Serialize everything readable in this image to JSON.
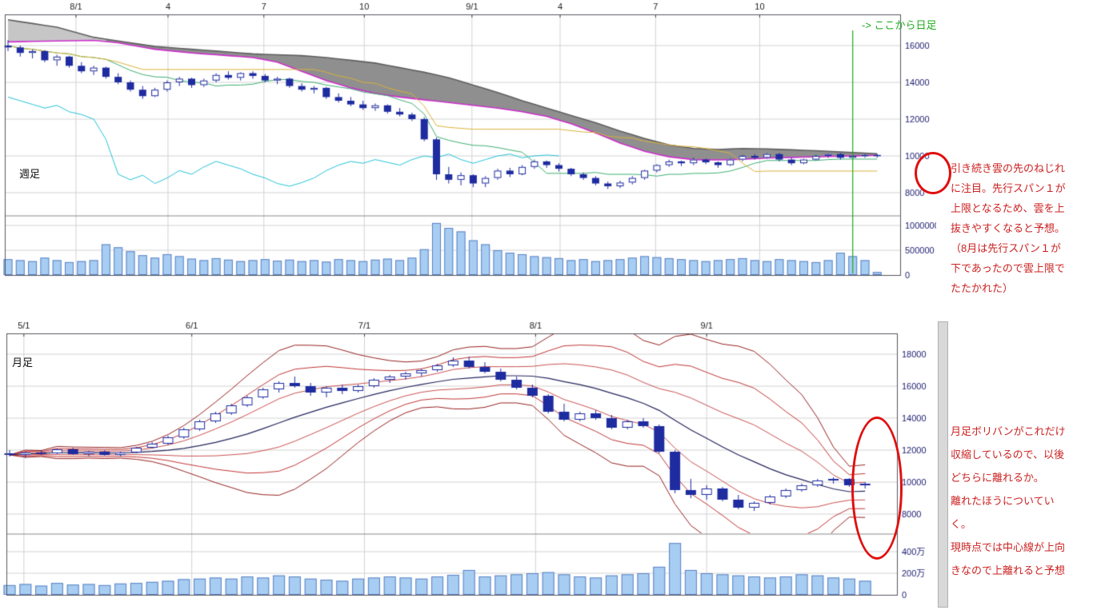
{
  "page": {
    "bg": "#ffffff"
  },
  "annotations": {
    "weekly_note": "引き続き雲の先のねじれ\nに注目。先行スパン１が\n上限となるため、雲を上\n抜きやすくなると予想。\n（8月は先行スパン１が\n下であったので雲上限で\nたたかれた）",
    "monthly_note": "月足ボリバンがこれだけ\n収縮しているので、以後\nどちらに離れるか。\n離れたほうについてい\nく。\n現時点では中心線が上向\nきなので上離れると予想"
  },
  "colors": {
    "up_candle": "#ffffff",
    "down_candle": "#1e2ca0",
    "candle_border": "#1e2ca0",
    "volume_fill": "#a8cdf2",
    "volume_border": "#5b82c4",
    "cloud_light": "#c6c6c6",
    "cloud_dark": "#8f8f8f",
    "cloud_edge_top": "#5f5f5f",
    "cloud_edge_bottom": "#cc2fcc",
    "tenkan": "#3fae72",
    "kijun": "#d9b23a",
    "chikou": "#25c3d8",
    "boll_center": "#26265e",
    "boll_band1": "#c85050",
    "boll_band2": "#c03434",
    "boll_band3": "#962020",
    "grid": "#d2d2d2",
    "frame": "#55555f",
    "axis_text": "#1a1a6e",
    "x_text": "#222222",
    "note_red": "#cc2222",
    "marker_green": "#1faa1f",
    "annotation_red": "#e01010"
  },
  "chart_data": [
    {
      "id": "weekly",
      "type": "candlestick",
      "title": "週足",
      "x_ticks": [
        {
          "pos": 5.55,
          "label": "8/1"
        },
        {
          "pos": 13.07,
          "label": "4"
        },
        {
          "pos": 20.9,
          "label": "7"
        },
        {
          "pos": 29.1,
          "label": "10"
        },
        {
          "pos": 37.9,
          "label": "9/1"
        },
        {
          "pos": 45.1,
          "label": "4"
        },
        {
          "pos": 52.9,
          "label": "7"
        },
        {
          "pos": 61.4,
          "label": "10"
        }
      ],
      "price_ticks": [
        16000,
        14000,
        12000,
        10000,
        8000
      ],
      "volume_ticks": [
        {
          "v": 1000000,
          "label": "1000000"
        },
        {
          "v": 500000,
          "label": "500000"
        },
        {
          "v": 0,
          "label": "0"
        }
      ],
      "candles": [
        [
          16000,
          16300,
          15700,
          15900
        ],
        [
          15900,
          16000,
          15400,
          15600
        ],
        [
          15600,
          15800,
          15300,
          15700
        ],
        [
          15700,
          15750,
          15100,
          15200
        ],
        [
          15200,
          15500,
          14900,
          15400
        ],
        [
          15400,
          15450,
          14800,
          14900
        ],
        [
          14900,
          15100,
          14500,
          14600
        ],
        [
          14600,
          14900,
          14400,
          14800
        ],
        [
          14800,
          14850,
          14200,
          14300
        ],
        [
          14300,
          14500,
          13900,
          14000
        ],
        [
          14000,
          14100,
          13500,
          13600
        ],
        [
          13600,
          13800,
          13100,
          13250
        ],
        [
          13250,
          13700,
          13200,
          13600
        ],
        [
          13600,
          14100,
          13500,
          14000
        ],
        [
          14000,
          14300,
          13800,
          14200
        ],
        [
          14200,
          14250,
          13700,
          13850
        ],
        [
          13850,
          14200,
          13750,
          14100
        ],
        [
          14100,
          14500,
          14000,
          14400
        ],
        [
          14400,
          14600,
          14150,
          14250
        ],
        [
          14250,
          14550,
          14100,
          14500
        ],
        [
          14500,
          14600,
          14200,
          14350
        ],
        [
          14350,
          14450,
          14000,
          14100
        ],
        [
          14100,
          14300,
          13900,
          14200
        ],
        [
          14200,
          14250,
          13700,
          13800
        ],
        [
          13800,
          13950,
          13500,
          13600
        ],
        [
          13600,
          13800,
          13400,
          13700
        ],
        [
          13700,
          13750,
          13100,
          13200
        ],
        [
          13200,
          13400,
          12900,
          13000
        ],
        [
          13000,
          13200,
          12700,
          12800
        ],
        [
          12800,
          13000,
          12500,
          12600
        ],
        [
          12600,
          12850,
          12450,
          12750
        ],
        [
          12750,
          12800,
          12300,
          12400
        ],
        [
          12400,
          12600,
          12150,
          12250
        ],
        [
          12250,
          12350,
          11900,
          12000
        ],
        [
          12000,
          12100,
          10800,
          10900
        ],
        [
          10900,
          11000,
          8700,
          9000
        ],
        [
          9000,
          9400,
          8500,
          8700
        ],
        [
          8700,
          9100,
          8400,
          8950
        ],
        [
          8950,
          9000,
          8300,
          8500
        ],
        [
          8500,
          8900,
          8300,
          8800
        ],
        [
          8800,
          9300,
          8700,
          9200
        ],
        [
          9200,
          9350,
          8850,
          9000
        ],
        [
          9000,
          9500,
          8950,
          9400
        ],
        [
          9400,
          9800,
          9300,
          9700
        ],
        [
          9700,
          9750,
          9350,
          9500
        ],
        [
          9500,
          9600,
          9150,
          9300
        ],
        [
          9300,
          9350,
          8900,
          9000
        ],
        [
          9000,
          9100,
          8700,
          8800
        ],
        [
          8800,
          8900,
          8400,
          8500
        ],
        [
          8500,
          8600,
          8200,
          8350
        ],
        [
          8350,
          8650,
          8250,
          8550
        ],
        [
          8550,
          8900,
          8450,
          8800
        ],
        [
          8800,
          9250,
          8700,
          9200
        ],
        [
          9200,
          9550,
          9100,
          9500
        ],
        [
          9500,
          9800,
          9400,
          9700
        ],
        [
          9700,
          9750,
          9450,
          9600
        ],
        [
          9600,
          9900,
          9500,
          9800
        ],
        [
          9800,
          9850,
          9550,
          9650
        ],
        [
          9650,
          9700,
          9350,
          9500
        ],
        [
          9500,
          9850,
          9450,
          9800
        ],
        [
          9800,
          10050,
          9700,
          10000
        ],
        [
          10000,
          10100,
          9800,
          9900
        ],
        [
          9900,
          10150,
          9850,
          10100
        ],
        [
          10100,
          10150,
          9700,
          9800
        ],
        [
          9800,
          9900,
          9500,
          9600
        ],
        [
          9600,
          9850,
          9550,
          9800
        ],
        [
          9800,
          10050,
          9750,
          10000
        ],
        [
          10000,
          10150,
          9900,
          10100
        ],
        [
          10100,
          10150,
          9800,
          9900
        ],
        [
          9900,
          10050,
          9850,
          10000
        ],
        [
          10000,
          10100,
          9900,
          10050
        ],
        [
          10050,
          10100,
          9900,
          10000
        ]
      ],
      "volumes": [
        320000,
        300000,
        280000,
        350000,
        300000,
        260000,
        280000,
        300000,
        620000,
        560000,
        480000,
        400000,
        350000,
        420000,
        380000,
        330000,
        300000,
        340000,
        310000,
        280000,
        300000,
        320000,
        290000,
        310000,
        280000,
        300000,
        270000,
        320000,
        300000,
        280000,
        310000,
        330000,
        300000,
        350000,
        520000,
        1050000,
        950000,
        880000,
        700000,
        620000,
        500000,
        450000,
        420000,
        380000,
        360000,
        340000,
        300000,
        320000,
        280000,
        300000,
        320000,
        350000,
        380000,
        360000,
        340000,
        320000,
        300000,
        280000,
        300000,
        320000,
        340000,
        300000,
        280000,
        320000,
        300000,
        280000,
        260000,
        300000,
        450000,
        380000,
        300000,
        60000
      ],
      "ichimoku": {
        "tenkan_period": 9,
        "kijun_period": 26,
        "chikou_shift": 26,
        "cloud_split_index": 8,
        "cloud_points": [
          [
            0,
            17400,
            16200
          ],
          [
            4,
            17000,
            16250
          ],
          [
            7,
            16450,
            16280
          ],
          [
            9,
            16250,
            16150
          ],
          [
            12,
            15950,
            15800
          ],
          [
            15,
            15800,
            15600
          ],
          [
            18,
            15650,
            15450
          ],
          [
            20,
            15550,
            15350
          ],
          [
            22,
            15500,
            15100
          ],
          [
            24,
            15450,
            14600
          ],
          [
            26,
            15350,
            14100
          ],
          [
            28,
            15200,
            13700
          ],
          [
            30,
            15050,
            13400
          ],
          [
            32,
            14800,
            13200
          ],
          [
            34,
            14550,
            13050
          ],
          [
            36,
            14250,
            12900
          ],
          [
            38,
            13850,
            12750
          ],
          [
            40,
            13450,
            12600
          ],
          [
            42,
            13000,
            12400
          ],
          [
            44,
            12600,
            12150
          ],
          [
            46,
            12200,
            11750
          ],
          [
            48,
            11800,
            11250
          ],
          [
            50,
            11350,
            10700
          ],
          [
            52,
            10950,
            10250
          ],
          [
            54,
            10600,
            9950
          ],
          [
            56,
            10400,
            9800
          ],
          [
            58,
            10350,
            9780
          ],
          [
            60,
            10400,
            9820
          ],
          [
            62,
            10380,
            9880
          ],
          [
            64,
            10330,
            9920
          ],
          [
            66,
            10280,
            9950
          ],
          [
            68,
            10220,
            9980
          ],
          [
            70,
            10150,
            10010
          ],
          [
            71,
            10120,
            10030
          ]
        ]
      },
      "marker": {
        "index": 69,
        "label": "-> ここから日足",
        "color": "#1faa1f"
      }
    },
    {
      "id": "monthly",
      "type": "candlestick",
      "title": "月足",
      "x_ticks": [
        {
          "pos": 0.9,
          "label": "5/1"
        },
        {
          "pos": 11.5,
          "label": "6/1"
        },
        {
          "pos": 22.4,
          "label": "7/1"
        },
        {
          "pos": 33.2,
          "label": "8/1"
        },
        {
          "pos": 44.0,
          "label": "9/1"
        }
      ],
      "price_ticks": [
        18000,
        16000,
        14000,
        12000,
        10000,
        8000
      ],
      "volume_ticks": [
        {
          "v": 400,
          "label": "400万"
        },
        {
          "v": 200,
          "label": "200万"
        },
        {
          "v": 0,
          "label": "0"
        }
      ],
      "candles": [
        [
          11800,
          12000,
          11600,
          11700
        ],
        [
          11700,
          11900,
          11500,
          11850
        ],
        [
          11850,
          12000,
          11700,
          11800
        ],
        [
          11800,
          12100,
          11750,
          12050
        ],
        [
          12050,
          12150,
          11700,
          11750
        ],
        [
          11750,
          11950,
          11600,
          11900
        ],
        [
          11900,
          12000,
          11650,
          11700
        ],
        [
          11700,
          11900,
          11600,
          11850
        ],
        [
          11850,
          12200,
          11800,
          12150
        ],
        [
          12150,
          12500,
          12100,
          12400
        ],
        [
          12400,
          12900,
          12300,
          12800
        ],
        [
          12800,
          13400,
          12700,
          13300
        ],
        [
          13300,
          13900,
          13200,
          13800
        ],
        [
          13800,
          14400,
          13700,
          14300
        ],
        [
          14300,
          14900,
          14200,
          14800
        ],
        [
          14800,
          15400,
          14700,
          15300
        ],
        [
          15300,
          15900,
          15200,
          15800
        ],
        [
          15800,
          16300,
          15600,
          16200
        ],
        [
          16200,
          16600,
          15900,
          16000
        ],
        [
          16000,
          16200,
          15400,
          15600
        ],
        [
          15600,
          16000,
          15300,
          15900
        ],
        [
          15900,
          16100,
          15500,
          15700
        ],
        [
          15700,
          16100,
          15600,
          16000
        ],
        [
          16000,
          16500,
          15900,
          16400
        ],
        [
          16400,
          16700,
          16200,
          16600
        ],
        [
          16600,
          16900,
          16400,
          16800
        ],
        [
          16800,
          17100,
          16600,
          17000
        ],
        [
          17000,
          17400,
          16900,
          17300
        ],
        [
          17300,
          17800,
          17200,
          17600
        ],
        [
          17600,
          17850,
          17100,
          17200
        ],
        [
          17200,
          17500,
          16800,
          16900
        ],
        [
          16900,
          17100,
          16300,
          16400
        ],
        [
          16400,
          16600,
          15800,
          15900
        ],
        [
          15900,
          16100,
          15300,
          15400
        ],
        [
          15400,
          15500,
          14300,
          14400
        ],
        [
          14400,
          14900,
          13800,
          13900
        ],
        [
          13900,
          14400,
          13800,
          14300
        ],
        [
          14300,
          14500,
          13900,
          14000
        ],
        [
          14000,
          14200,
          13300,
          13400
        ],
        [
          13400,
          13900,
          13300,
          13800
        ],
        [
          13800,
          14000,
          13400,
          13500
        ],
        [
          13500,
          13600,
          11800,
          11900
        ],
        [
          11900,
          12000,
          9300,
          9500
        ],
        [
          9500,
          10200,
          9000,
          9200
        ],
        [
          9200,
          9800,
          8900,
          9600
        ],
        [
          9600,
          9700,
          8800,
          8900
        ],
        [
          8900,
          9200,
          8300,
          8400
        ],
        [
          8400,
          8800,
          8200,
          8700
        ],
        [
          8700,
          9200,
          8600,
          9100
        ],
        [
          9100,
          9600,
          9000,
          9500
        ],
        [
          9500,
          9900,
          9400,
          9800
        ],
        [
          9800,
          10200,
          9700,
          10100
        ],
        [
          10100,
          10300,
          9900,
          10200
        ],
        [
          10200,
          10250,
          9700,
          9800
        ],
        [
          9800,
          10000,
          9600,
          9900
        ]
      ],
      "volumes_man": [
        90,
        100,
        85,
        110,
        95,
        100,
        90,
        105,
        110,
        120,
        130,
        145,
        150,
        160,
        150,
        170,
        160,
        180,
        170,
        150,
        140,
        130,
        150,
        160,
        170,
        160,
        150,
        170,
        185,
        230,
        170,
        180,
        190,
        200,
        210,
        190,
        170,
        160,
        180,
        190,
        200,
        260,
        480,
        230,
        200,
        190,
        180,
        170,
        160,
        170,
        190,
        180,
        160,
        150,
        130
      ],
      "bollinger": {
        "period": 12,
        "sigmas": [
          1,
          2,
          3
        ]
      }
    }
  ]
}
